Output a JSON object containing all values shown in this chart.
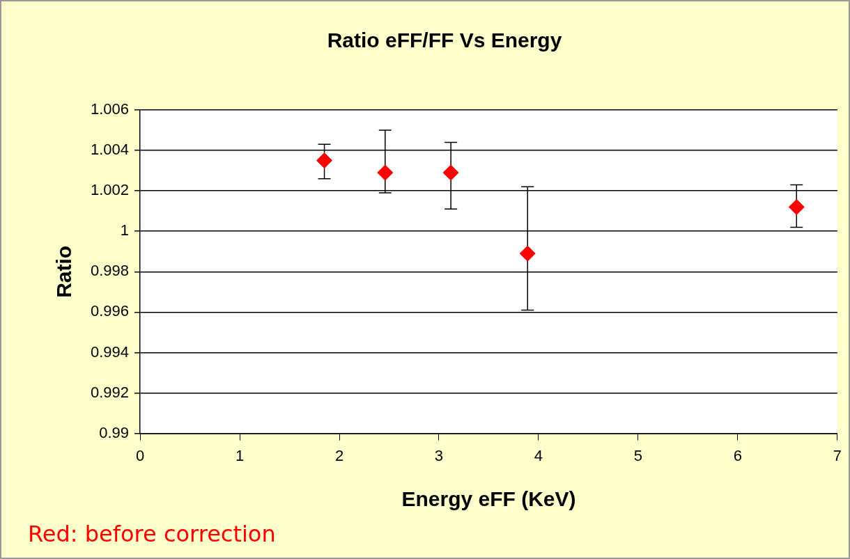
{
  "chart_data": {
    "type": "scatter",
    "title": "Ratio eFF/FF Vs Energy",
    "xlabel": "Energy eFF (KeV)",
    "ylabel": "Ratio",
    "annotations": [
      "Red: before correction"
    ],
    "x": [
      1.85,
      2.46,
      3.12,
      3.89,
      6.59
    ],
    "series": [
      {
        "color": "#ff0000",
        "values": [
          1.0035,
          1.0029,
          1.0029,
          0.9989,
          1.0012
        ],
        "errors": [
          [
            1.0026,
            1.0043
          ],
          [
            1.0019,
            1.005
          ],
          [
            1.0011,
            1.0044
          ],
          [
            0.9961,
            1.0022
          ],
          [
            1.0002,
            1.0023
          ]
        ]
      }
    ],
    "xlim": [
      0,
      7
    ],
    "xticks": [
      0,
      1,
      2,
      3,
      4,
      5,
      6,
      7
    ],
    "ylim": [
      0.99,
      1.006
    ],
    "yticks": [
      0.99,
      0.992,
      0.994,
      0.996,
      0.998,
      1,
      1.002,
      1.004,
      1.006
    ],
    "grid": "y",
    "legend": false,
    "marker": "diamond"
  }
}
